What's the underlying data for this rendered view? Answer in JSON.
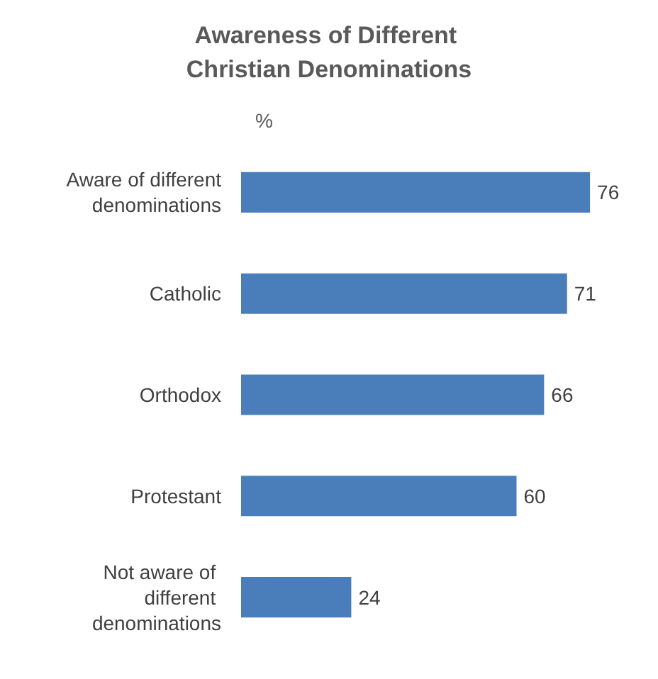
{
  "chart_data": {
    "type": "bar",
    "orientation": "horizontal",
    "title": "Awareness of Different Christian Denominations",
    "xlabel": "%",
    "categories": [
      "Aware of different denominations",
      "Catholic",
      "Orthodox",
      "Protestant",
      "Not aware of different denominations"
    ],
    "values": [
      76,
      71,
      66,
      60,
      24
    ],
    "color": "#4a7ebb",
    "data_labels": true
  }
}
